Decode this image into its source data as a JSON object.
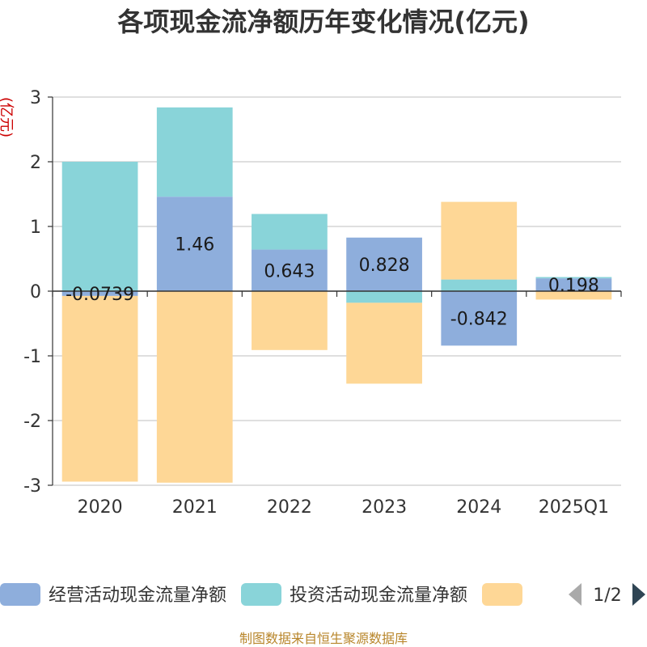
{
  "chart_data": {
    "type": "bar",
    "stacked": true,
    "title": "各项现金流净额历年变化情况(亿元)",
    "ylabel": "(亿元)",
    "categories": [
      "2020",
      "2021",
      "2022",
      "2023",
      "2024",
      "2025Q1"
    ],
    "ylim": [
      -3,
      3
    ],
    "yticks": [
      -3,
      -2,
      -1,
      0,
      1,
      2,
      3
    ],
    "grid": true,
    "series": [
      {
        "name": "经营活动现金流量净额",
        "color": "#8eaedc",
        "values": [
          -0.0739,
          1.46,
          0.643,
          0.828,
          -0.842,
          0.198
        ],
        "labels": [
          "-0.0739",
          "1.46",
          "0.643",
          "0.828",
          "-0.842",
          "0.198"
        ]
      },
      {
        "name": "投资活动现金流量净额",
        "color": "#89d4d9",
        "values": [
          2.0,
          1.38,
          0.55,
          -0.18,
          0.18,
          0.02
        ]
      },
      {
        "name": "",
        "color": "#fed796",
        "values": [
          -2.87,
          -2.96,
          -0.91,
          -1.25,
          1.2,
          -0.13
        ]
      }
    ],
    "legend": {
      "position": "bottom",
      "page": "1/2"
    }
  },
  "source": "制图数据来自恒生聚源数据库"
}
